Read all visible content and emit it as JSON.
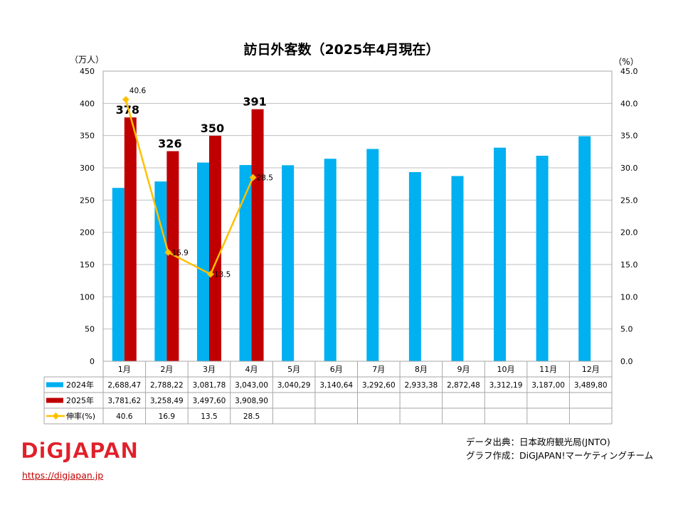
{
  "colors": {
    "series_2024": "#00b0f0",
    "series_2025": "#c00000",
    "growth_line": "#ffc000",
    "grid": "#bfbfbf",
    "logo_red": "#e0202a"
  },
  "chart_data": {
    "type": "bar",
    "title": "訪日外客数（2025年4月現在）",
    "y_unit_left": "（万人）",
    "y_unit_right": "（%）",
    "categories": [
      "1月",
      "2月",
      "3月",
      "4月",
      "5月",
      "6月",
      "7月",
      "8月",
      "9月",
      "10月",
      "11月",
      "12月"
    ],
    "ylim": [
      0,
      450
    ],
    "y2lim": [
      0,
      45
    ],
    "y_ticks": [
      "0",
      "50",
      "100",
      "150",
      "200",
      "250",
      "300",
      "350",
      "400",
      "450"
    ],
    "y2_ticks": [
      "0.0",
      "5.0",
      "10.0",
      "15.0",
      "20.0",
      "25.0",
      "30.0",
      "35.0",
      "40.0",
      "45.0"
    ],
    "grid": true,
    "series": [
      {
        "name": "2024年",
        "type": "bar",
        "values": [
          268.847,
          278.822,
          308.178,
          304.3,
          304.029,
          314.064,
          329.26,
          293.338,
          287.248,
          331.219,
          318.7,
          348.98
        ],
        "table_labels": [
          "2,688,47",
          "2,788,22",
          "3,081,78",
          "3,043,00",
          "3,040,29",
          "3,140,64",
          "3,292,60",
          "2,933,38",
          "2,872,48",
          "3,312,19",
          "3,187,00",
          "3,489,80"
        ]
      },
      {
        "name": "2025年",
        "type": "bar",
        "values": [
          378.162,
          325.849,
          349.76,
          390.89,
          null,
          null,
          null,
          null,
          null,
          null,
          null,
          null
        ],
        "table_labels": [
          "3,781,62",
          "3,258,49",
          "3,497,60",
          "3,908,90",
          "",
          "",
          "",
          "",
          "",
          "",
          "",
          ""
        ],
        "data_labels": [
          "378",
          "326",
          "350",
          "391",
          "",
          "",
          "",
          "",
          "",
          "",
          "",
          ""
        ]
      },
      {
        "name": "伸率(%)",
        "type": "line",
        "axis": "right",
        "values": [
          40.6,
          16.9,
          13.5,
          28.5,
          null,
          null,
          null,
          null,
          null,
          null,
          null,
          null
        ],
        "table_labels": [
          "40.6",
          "16.9",
          "13.5",
          "28.5",
          "",
          "",
          "",
          "",
          "",
          "",
          "",
          ""
        ],
        "data_labels": [
          "40.6",
          "16.9",
          "13.5",
          "28.5",
          "",
          "",
          "",
          "",
          "",
          "",
          "",
          ""
        ]
      }
    ]
  },
  "source": {
    "line1": "データ出典：日本政府観光局(JNTO)",
    "line2": "グラフ作成：DiGJAPAN!マーケティングチーム"
  },
  "logo": {
    "text": "DiGJAPAN!"
  },
  "link": {
    "text": "https://digjapan.jp"
  }
}
